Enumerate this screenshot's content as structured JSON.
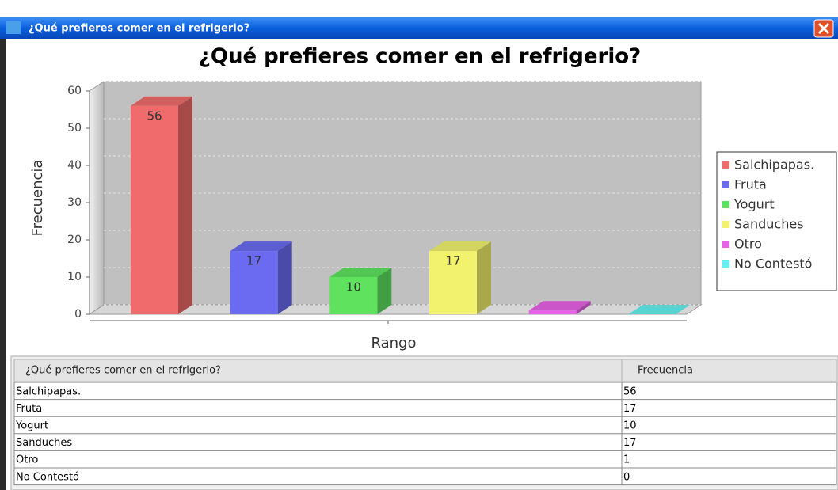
{
  "window": {
    "title": "¿Qué prefieres comer en el refrigerio?"
  },
  "chart_data": {
    "type": "bar3d",
    "title": "¿Qué prefieres comer en el refrigerio?",
    "x_label": "Rango",
    "y_label": "Frecuencia",
    "series": [
      {
        "name": "Salchipapas.",
        "color": "#f06b6b",
        "values": [
          56
        ]
      },
      {
        "name": "Fruta",
        "color": "#6b6bf2",
        "values": [
          17
        ]
      },
      {
        "name": "Yogurt",
        "color": "#5fe35f",
        "values": [
          10
        ]
      },
      {
        "name": "Sanduches",
        "color": "#f2f26e",
        "values": [
          17
        ]
      },
      {
        "name": "Otro",
        "color": "#e662e6",
        "values": [
          1
        ]
      },
      {
        "name": "No Contestó",
        "color": "#66f0f0",
        "values": [
          0
        ]
      }
    ],
    "ylim": [
      0,
      60
    ],
    "yticks": [
      0,
      10,
      20,
      30,
      40,
      50,
      60
    ],
    "grid": true,
    "legend": "right"
  },
  "table": {
    "header": [
      "¿Qué prefieres comer en el refrigerio?",
      "Frecuencia"
    ],
    "rows": [
      [
        "Salchipapas.",
        "56"
      ],
      [
        "Fruta",
        "17"
      ],
      [
        "Yogurt",
        "10"
      ],
      [
        "Sanduches",
        "17"
      ],
      [
        "Otro",
        "1"
      ],
      [
        "No Contestó",
        "0"
      ]
    ]
  }
}
